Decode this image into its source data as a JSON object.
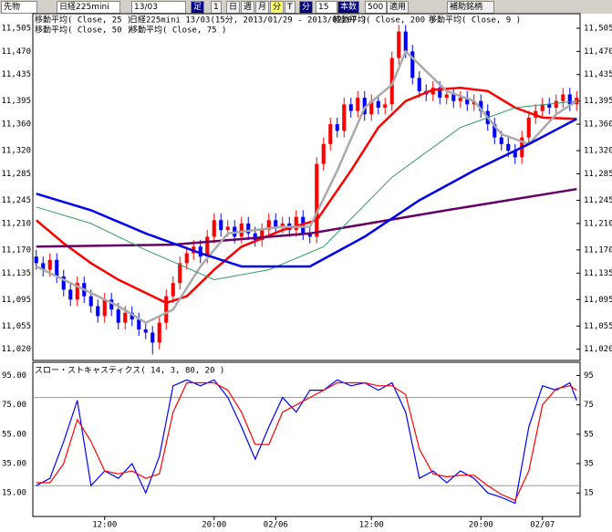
{
  "toolbar": {
    "items": [
      "先物",
      "日経225mini",
      "13/03",
      "足",
      "1",
      "日",
      "週",
      "月",
      "分",
      "T",
      "分",
      "15",
      "本数",
      "500",
      "適用",
      "補助銘柄"
    ]
  },
  "chart_data": [
    {
      "type": "candlestick",
      "title": "日経225mini 13/03(15分, 2013/01/29 - 2013/02/07 )",
      "open": [
        11160,
        11150,
        11140,
        11155,
        11130,
        11110,
        11095,
        11120,
        11100,
        11085,
        11070,
        11095,
        11080,
        11060,
        11075,
        11065,
        11050,
        11045,
        11030,
        11060,
        11100,
        11120,
        11150,
        11165,
        11175,
        11160,
        11190,
        11215,
        11200,
        11205,
        11190,
        11210,
        11195,
        11185,
        11200,
        11215,
        11205,
        11210,
        11200,
        11220,
        11195,
        11190,
        11300,
        11330,
        11360,
        11350,
        11390,
        11380,
        11400,
        11375,
        11395,
        11385,
        11390,
        11460,
        11500,
        11470,
        11430,
        11410,
        11405,
        11415,
        11400,
        11405,
        11395,
        11400,
        11390,
        11395,
        11380,
        11360,
        11340,
        11330,
        11320,
        11310,
        11340,
        11370,
        11380,
        11390,
        11385,
        11395,
        11405,
        11390
      ],
      "high": [
        11170,
        11160,
        11165,
        11165,
        11140,
        11120,
        11130,
        11130,
        11110,
        11095,
        11105,
        11105,
        11090,
        11085,
        11085,
        11075,
        11060,
        11055,
        11070,
        11110,
        11130,
        11160,
        11175,
        11185,
        11185,
        11200,
        11225,
        11225,
        11215,
        11215,
        11220,
        11220,
        11205,
        11210,
        11225,
        11225,
        11220,
        11220,
        11230,
        11230,
        11205,
        11310,
        11340,
        11370,
        11370,
        11400,
        11400,
        11410,
        11410,
        11405,
        11405,
        11400,
        11470,
        11510,
        11510,
        11480,
        11440,
        11420,
        11425,
        11425,
        11415,
        11415,
        11410,
        11410,
        11405,
        11405,
        11390,
        11370,
        11350,
        11340,
        11330,
        11350,
        11380,
        11390,
        11400,
        11400,
        11405,
        11415,
        11415,
        11410
      ],
      "low": [
        11140,
        11130,
        11130,
        11120,
        11100,
        11085,
        11085,
        11090,
        11075,
        11060,
        11060,
        11070,
        11050,
        11050,
        11055,
        11040,
        11035,
        11012,
        11020,
        11050,
        11090,
        11110,
        11140,
        11155,
        11150,
        11150,
        11180,
        11190,
        11190,
        11180,
        11180,
        11185,
        11175,
        11175,
        11190,
        11195,
        11195,
        11190,
        11190,
        11185,
        11180,
        11180,
        11290,
        11320,
        11340,
        11340,
        11370,
        11370,
        11365,
        11365,
        11375,
        11375,
        11380,
        11450,
        11460,
        11420,
        11400,
        11395,
        11395,
        11390,
        11390,
        11385,
        11385,
        11380,
        11380,
        11370,
        11350,
        11330,
        11320,
        11310,
        11300,
        11300,
        11330,
        11360,
        11370,
        11375,
        11375,
        11385,
        11380,
        11380
      ],
      "close": [
        11150,
        11140,
        11155,
        11130,
        11110,
        11095,
        11120,
        11100,
        11085,
        11070,
        11095,
        11080,
        11060,
        11075,
        11065,
        11050,
        11045,
        11030,
        11060,
        11100,
        11120,
        11150,
        11165,
        11175,
        11160,
        11190,
        11215,
        11200,
        11205,
        11190,
        11210,
        11195,
        11185,
        11200,
        11215,
        11205,
        11210,
        11200,
        11220,
        11195,
        11190,
        11300,
        11330,
        11360,
        11350,
        11390,
        11380,
        11400,
        11375,
        11395,
        11385,
        11390,
        11460,
        11500,
        11470,
        11430,
        11410,
        11405,
        11415,
        11400,
        11405,
        11395,
        11400,
        11390,
        11395,
        11380,
        11360,
        11340,
        11330,
        11320,
        11310,
        11340,
        11370,
        11380,
        11390,
        11385,
        11395,
        11405,
        11390,
        11400
      ],
      "up_color": "#ff0000",
      "down_color": "#0000ff",
      "xlim": [
        0,
        80
      ],
      "xticks": [
        {
          "value": 10,
          "label": "12:00"
        },
        {
          "value": 26,
          "label": "20:00"
        },
        {
          "value": 35,
          "label": "02/06"
        },
        {
          "value": 49,
          "label": "12:00"
        },
        {
          "value": 65,
          "label": "20:00"
        },
        {
          "value": 74,
          "label": "02/07"
        }
      ],
      "ylim": [
        11003,
        11527
      ],
      "yticks": [
        {
          "value": 11505,
          "label": "11,505"
        },
        {
          "value": 11470,
          "label": "11,470"
        },
        {
          "value": 11435,
          "label": "11,435"
        },
        {
          "value": 11395,
          "label": "11,395"
        },
        {
          "value": 11360,
          "label": "11,360"
        },
        {
          "value": 11320,
          "label": "11,320"
        },
        {
          "value": 11285,
          "label": "11,285"
        },
        {
          "value": 11245,
          "label": "11,245"
        },
        {
          "value": 11210,
          "label": "11,210"
        },
        {
          "value": 11170,
          "label": "11,170"
        },
        {
          "value": 11135,
          "label": "11,135"
        },
        {
          "value": 11095,
          "label": "11,095"
        },
        {
          "value": 11055,
          "label": "11,055"
        },
        {
          "value": 11020,
          "label": "11,020"
        }
      ],
      "series": [
        {
          "name": "移動平均( Close, 25 )",
          "color": "#ff0000",
          "width": 2.5,
          "x": [
            0,
            4,
            8,
            12,
            16,
            19,
            22,
            26,
            30,
            36,
            41,
            46,
            50,
            54,
            58,
            62,
            66,
            70,
            74,
            79
          ],
          "values": [
            11215,
            11180,
            11150,
            11125,
            11105,
            11090,
            11100,
            11140,
            11175,
            11200,
            11215,
            11290,
            11355,
            11395,
            11412,
            11415,
            11410,
            11385,
            11370,
            11368
          ]
        },
        {
          "name": "移動平均( Close, 200 )",
          "color": "#660066",
          "width": 2.5,
          "x": [
            0,
            20,
            40,
            60,
            79
          ],
          "values": [
            11175,
            11178,
            11195,
            11230,
            11262
          ]
        },
        {
          "name": "移動平均( Close, 9 )",
          "color": "#aaaaaa",
          "width": 2.5,
          "x": [
            0,
            4,
            8,
            12,
            16,
            20,
            24,
            28,
            32,
            36,
            40,
            44,
            48,
            52,
            54,
            56,
            60,
            64,
            68,
            72,
            76,
            79
          ],
          "values": [
            11145,
            11125,
            11105,
            11085,
            11060,
            11080,
            11145,
            11195,
            11200,
            11205,
            11205,
            11290,
            11385,
            11420,
            11470,
            11450,
            11410,
            11395,
            11345,
            11330,
            11375,
            11395
          ]
        },
        {
          "name": "移動平均( Close, 50 )",
          "color": "#339966",
          "width": 1,
          "x": [
            0,
            8,
            16,
            26,
            34,
            42,
            52,
            62,
            70,
            79
          ],
          "values": [
            11235,
            11210,
            11170,
            11125,
            11140,
            11175,
            11280,
            11355,
            11385,
            11395
          ]
        },
        {
          "name": "移動平均( Close, 75 )",
          "color": "#0000ee",
          "width": 2.5,
          "x": [
            0,
            8,
            16,
            24,
            30,
            40,
            48,
            56,
            64,
            72,
            79
          ],
          "values": [
            11255,
            11230,
            11195,
            11165,
            11145,
            11145,
            11190,
            11245,
            11290,
            11330,
            11368
          ]
        }
      ]
    },
    {
      "type": "line",
      "title": "スロー・ストキャスティクス( 14, 3, 80, 20 )",
      "x": [
        0,
        2,
        4,
        6,
        8,
        10,
        12,
        14,
        16,
        18,
        20,
        22,
        24,
        26,
        28,
        30,
        32,
        34,
        36,
        38,
        40,
        42,
        44,
        46,
        48,
        50,
        52,
        54,
        56,
        58,
        60,
        62,
        64,
        66,
        68,
        70,
        72,
        74,
        76,
        78,
        79
      ],
      "xlim": [
        0,
        80
      ],
      "series": [
        {
          "color": "#0000ff",
          "values": [
            20,
            25,
            50,
            78,
            20,
            30,
            25,
            35,
            15,
            40,
            88,
            92,
            88,
            92,
            80,
            60,
            38,
            60,
            80,
            70,
            85,
            85,
            92,
            88,
            90,
            85,
            90,
            70,
            25,
            30,
            22,
            30,
            25,
            15,
            12,
            8,
            60,
            88,
            85,
            90,
            78
          ]
        },
        {
          "color": "#ff0000",
          "values": [
            22,
            22,
            35,
            65,
            50,
            30,
            28,
            30,
            25,
            28,
            70,
            90,
            90,
            90,
            85,
            70,
            48,
            48,
            70,
            75,
            80,
            85,
            90,
            90,
            90,
            88,
            88,
            82,
            45,
            28,
            26,
            27,
            27,
            20,
            14,
            10,
            30,
            75,
            86,
            88,
            85
          ]
        }
      ],
      "levels": [
        80,
        20
      ],
      "ylim": [
        -1,
        104
      ],
      "yticks": [
        95,
        75,
        55,
        35,
        15
      ],
      "yticks_left": [
        {
          "value": 95,
          "label": "95.00"
        },
        {
          "value": 75,
          "label": "75.00"
        },
        {
          "value": 55,
          "label": "55.00"
        },
        {
          "value": 35,
          "label": "35.00"
        },
        {
          "value": 15,
          "label": "15.00"
        }
      ]
    }
  ]
}
